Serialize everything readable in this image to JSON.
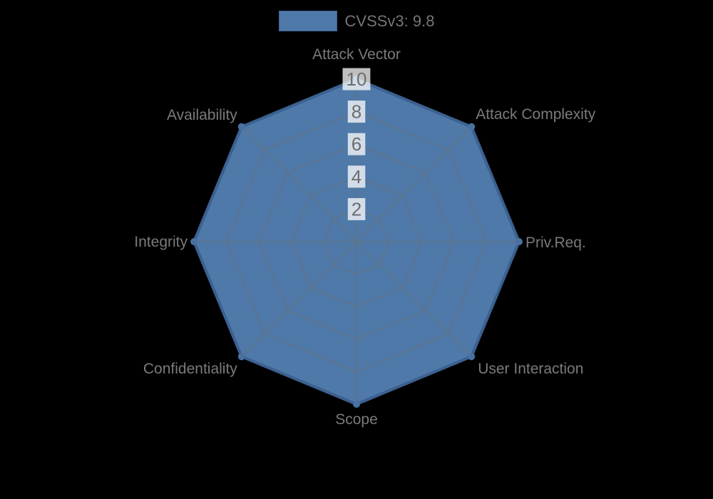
{
  "background_color": "#000000",
  "chart_data": {
    "type": "radar",
    "categories": [
      "Attack Vector",
      "Attack Complexity",
      "Priv.Req.",
      "User Interaction",
      "Scope",
      "Confidentiality",
      "Integrity",
      "Availability"
    ],
    "series": [
      {
        "name": "CVSSv3: 9.8",
        "values": [
          10,
          10,
          10,
          10,
          10,
          10,
          10,
          10
        ],
        "fill_color": "#4e79a8",
        "border_color": "#3c6191",
        "point_color": "#49719f"
      }
    ],
    "scale": {
      "min": 0,
      "max": 10,
      "tick_step": 2,
      "tick_labels": [
        "2",
        "4",
        "6",
        "8",
        "10"
      ]
    },
    "legend_position": "top",
    "grid": {
      "visible": true,
      "shape": "polygon",
      "line_color": "rgba(112,112,112,0.55)"
    },
    "colors": {
      "axis_label": "#7a7a7a",
      "tick_label": "#6d6d6d",
      "tick_backdrop": "rgba(255,255,255,0.75)",
      "legend_text": "#757575"
    }
  }
}
